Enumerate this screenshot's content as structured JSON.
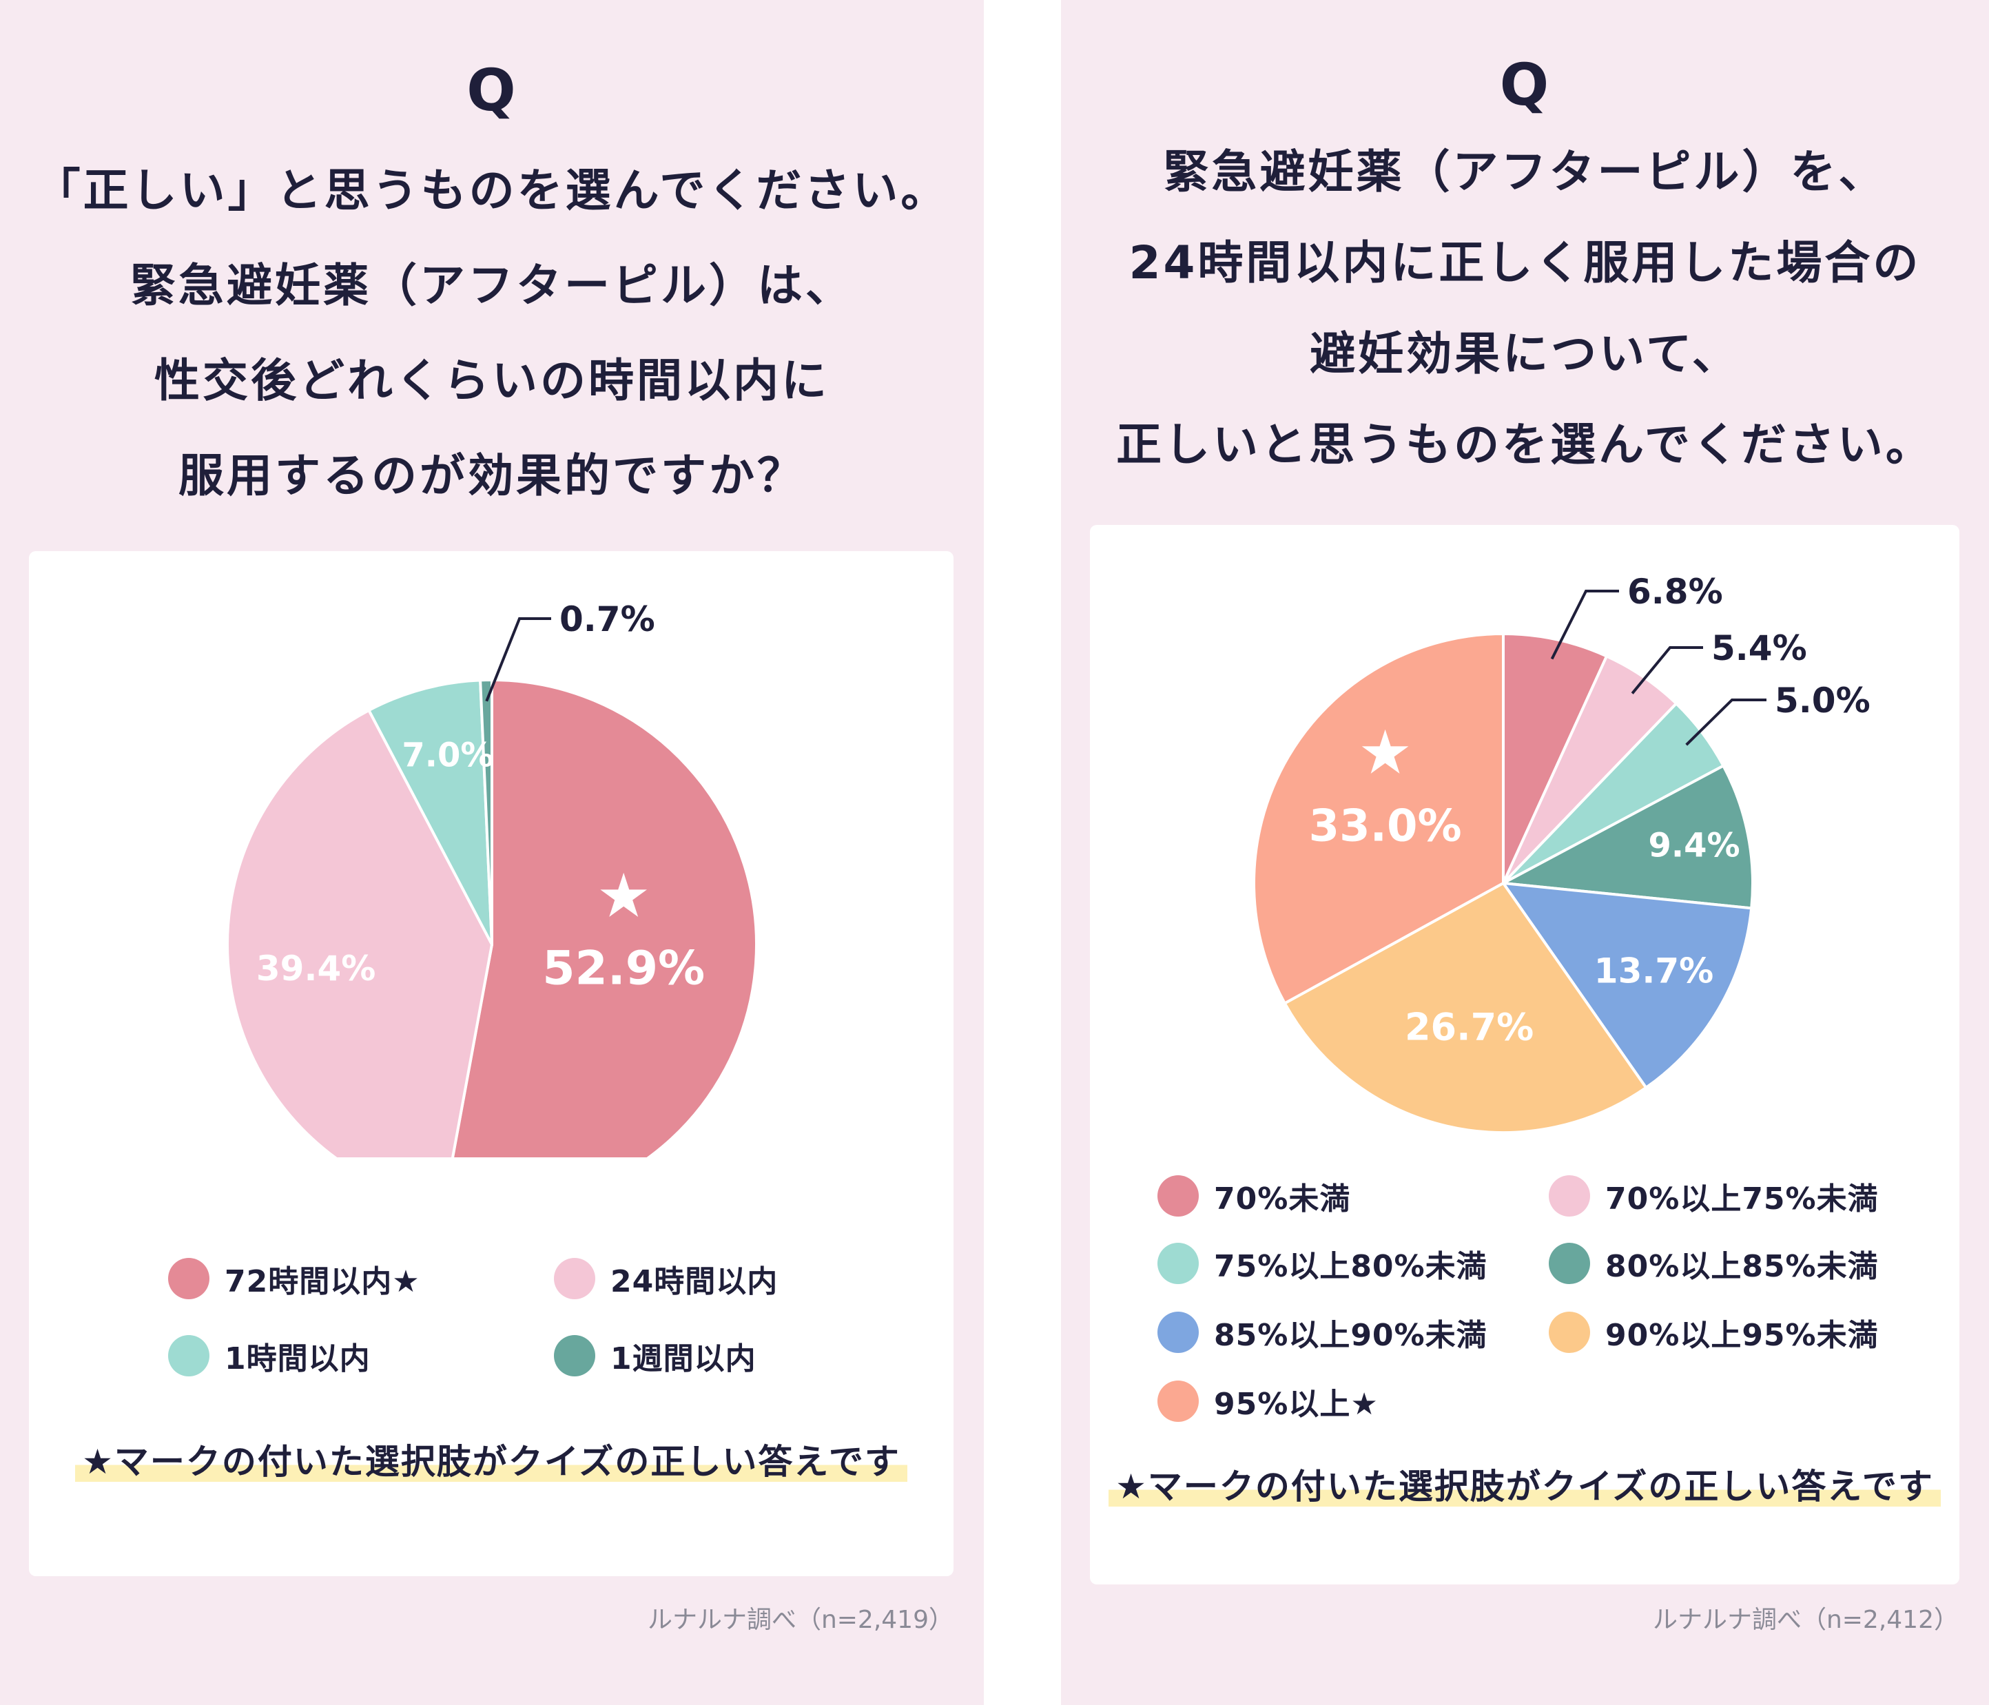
{
  "panels": [
    {
      "q_mark": "Q",
      "question_lines": [
        "「正しい」と思うものを選んでください。",
        "緊急避妊薬（アフターピル）は、",
        "性交後どれくらいの時間以内に",
        "服用するのが効果的ですか？"
      ],
      "legend": [
        {
          "label": "72時間以内★",
          "color": "#e48a96"
        },
        {
          "label": "24時間以内",
          "color": "#f4c6d6"
        },
        {
          "label": "1時間以内",
          "color": "#9edbd2"
        },
        {
          "label": "1週間以内",
          "color": "#68a79d"
        }
      ],
      "note": "★マークの付いた選択肢がクイズの正しい答えです",
      "source": "ルナルナ調べ（n=2,419）"
    },
    {
      "q_mark": "Q",
      "question_lines": [
        "緊急避妊薬（アフターピル）を、",
        "24時間以内に正しく服用した場合の",
        "避妊効果について、",
        "正しいと思うものを選んでください。"
      ],
      "legend": [
        {
          "label": "70%未満",
          "color": "#e48a96"
        },
        {
          "label": "70%以上75%未満",
          "color": "#f4c6d6"
        },
        {
          "label": "75%以上80%未満",
          "color": "#9edbd2"
        },
        {
          "label": "80%以上85%未満",
          "color": "#68a79d"
        },
        {
          "label": "85%以上90%未満",
          "color": "#7ea6e0"
        },
        {
          "label": "90%以上95%未満",
          "color": "#fcc98a"
        },
        {
          "label": "95%以上★",
          "color": "#fba891"
        }
      ],
      "note": "★マークの付いた選択肢がクイズの正しい答えです",
      "source": "ルナルナ調べ（n=2,412）"
    }
  ],
  "chart_data": [
    {
      "type": "pie",
      "categories": [
        "72時間以内★",
        "24時間以内",
        "1時間以内",
        "1週間以内"
      ],
      "values": [
        52.9,
        39.4,
        7.0,
        0.7
      ],
      "labels": [
        "52.9%",
        "39.4%",
        "7.0%",
        "0.7%"
      ],
      "colors": [
        "#e48a96",
        "#f4c6d6",
        "#9edbd2",
        "#68a79d"
      ],
      "correct_index": 0,
      "star": "★",
      "legend_position": "bottom"
    },
    {
      "type": "pie",
      "categories": [
        "70%未満",
        "70%以上75%未満",
        "75%以上80%未満",
        "80%以上85%未満",
        "85%以上90%未満",
        "90%以上95%未満",
        "95%以上★"
      ],
      "values": [
        6.8,
        5.4,
        5.0,
        9.4,
        13.7,
        26.7,
        33.0
      ],
      "labels": [
        "6.8%",
        "5.4%",
        "5.0%",
        "9.4%",
        "13.7%",
        "26.7%",
        "33.0%"
      ],
      "colors": [
        "#e48a96",
        "#f4c6d6",
        "#9edbd2",
        "#68a79d",
        "#7ea6e0",
        "#fcc98a",
        "#fba891"
      ],
      "correct_index": 6,
      "star": "★",
      "legend_position": "bottom"
    }
  ]
}
